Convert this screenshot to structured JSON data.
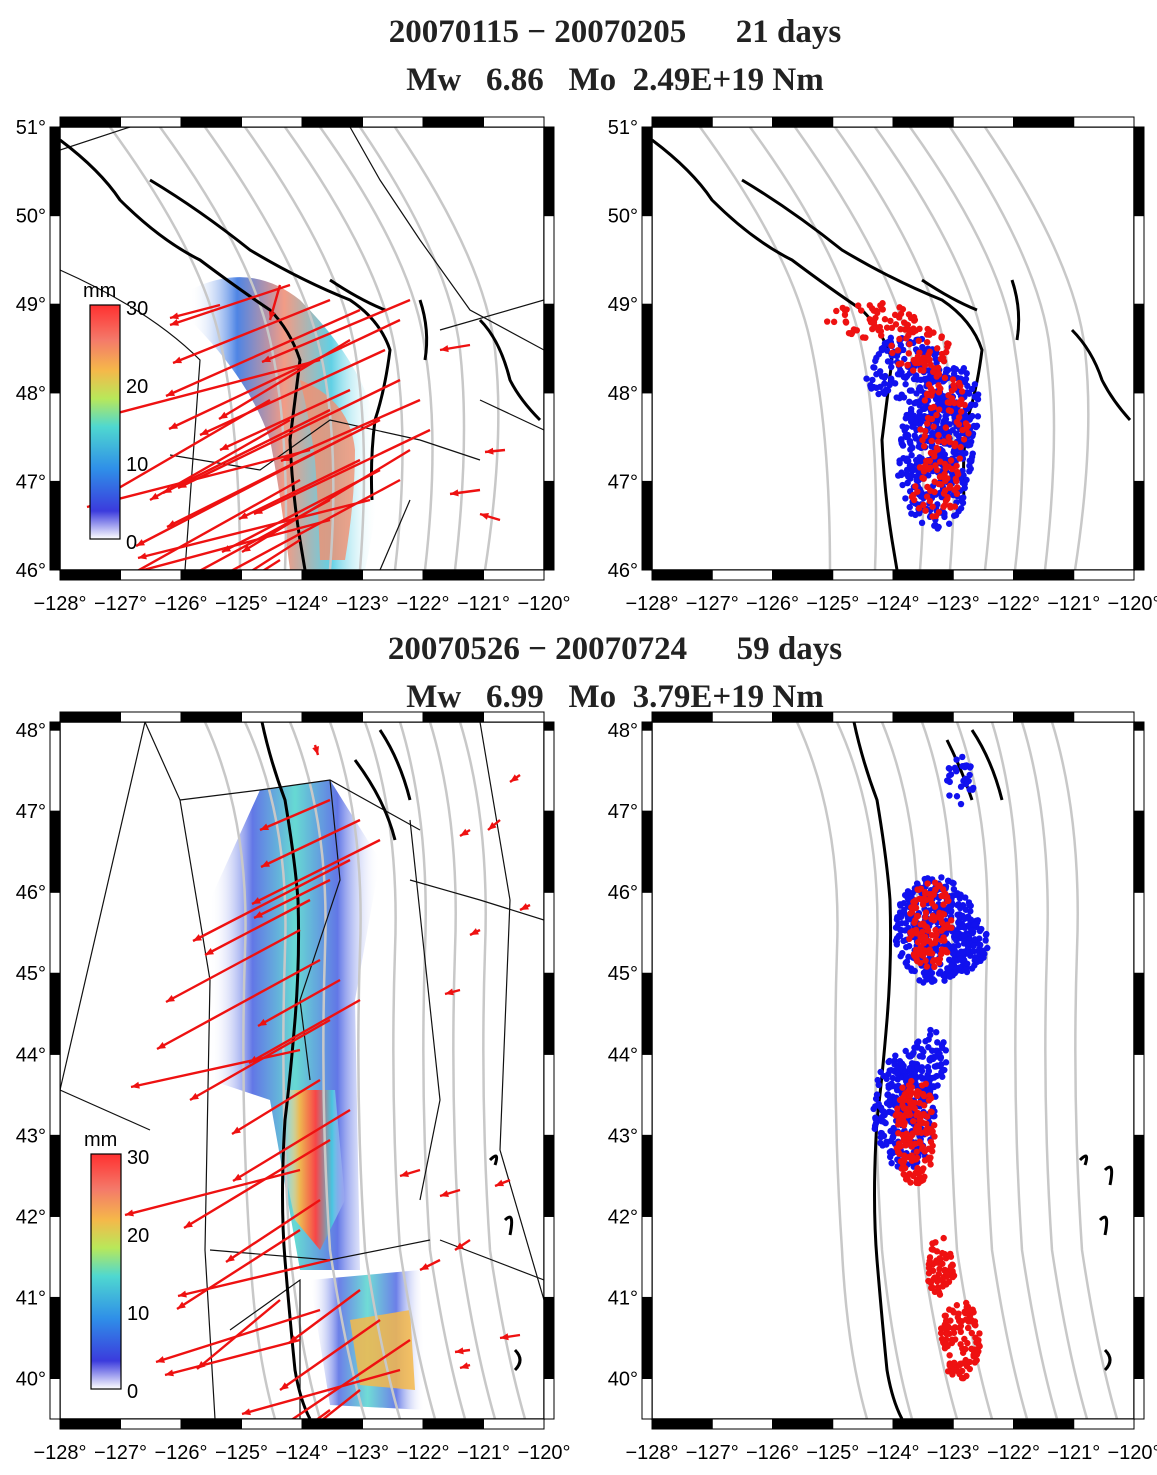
{
  "sections": [
    {
      "period_label": "20070115 − 20070205      21 days",
      "moment_label": "Mw   6.86   Mo  2.49E+19 Nm",
      "lat_labels": [
        "46°",
        "47°",
        "48°",
        "49°",
        "50°",
        "51°"
      ],
      "lat_min": 46,
      "lat_max": 51
    },
    {
      "period_label": "20070526 − 20070724      59 days",
      "moment_label": "Mw   6.99   Mo  3.79E+19 Nm",
      "lat_labels": [
        "40°",
        "41°",
        "42°",
        "43°",
        "44°",
        "45°",
        "46°",
        "47°",
        "48°"
      ],
      "lat_min": 39.5,
      "lat_max": 48.1
    }
  ],
  "lon_labels": [
    "−128°",
    "−127°",
    "−126°",
    "−125°",
    "−124°",
    "−123°",
    "−122°",
    "−121°",
    "−120°"
  ],
  "lon_min": -128,
  "lon_max": -120,
  "colorbar": {
    "unit": "mm",
    "ticks": [
      "0",
      "10",
      "20",
      "30"
    ],
    "range": [
      0,
      30
    ]
  },
  "colors": {
    "displacement_arrow": "#ee1111",
    "tremor_recent": "#ee1111",
    "tremor_earlier": "#1111ee",
    "slab_contour": "#c8c8c8",
    "coastline": "#000000"
  }
}
